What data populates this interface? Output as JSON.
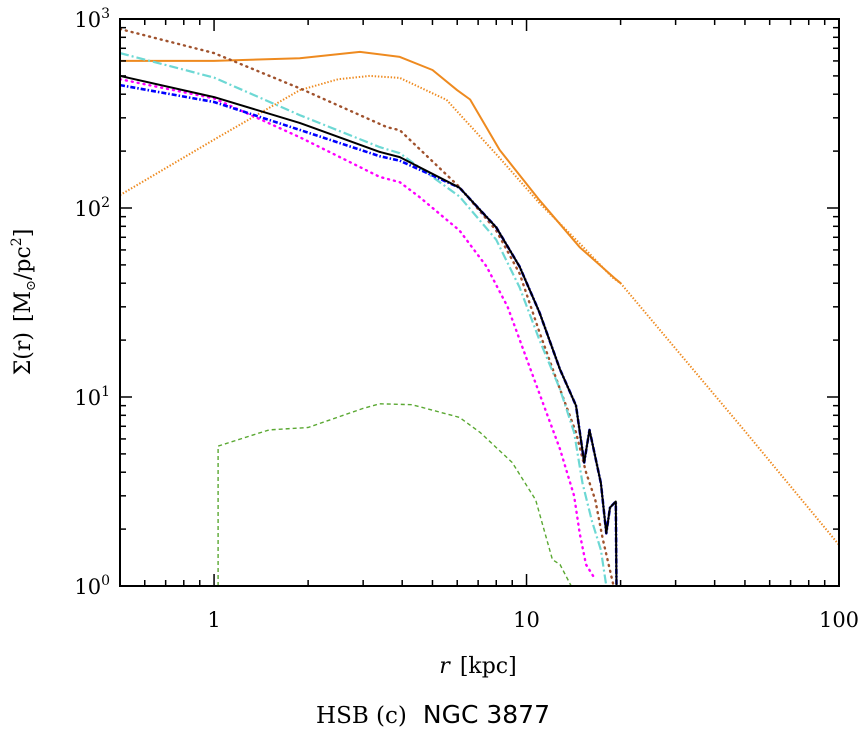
{
  "chart_data": {
    "type": "line",
    "title": "",
    "caption": {
      "prefix": "HSB (c)",
      "name": "NGC 3877"
    },
    "xlabel": {
      "var": "r",
      "unit": "[kpc]"
    },
    "ylabel": {
      "text": "Σ(r)",
      "unit_open": "[M",
      "unit_sub": "⊙",
      "unit_rest": "/pc",
      "unit_sup": "2",
      "unit_close": "]"
    },
    "xscale": "log",
    "yscale": "log",
    "xlim": [
      0.5,
      100
    ],
    "ylim": [
      1,
      1000
    ],
    "grid": false,
    "legend": "none",
    "x_ticks": [
      {
        "value": 1,
        "label": "1"
      },
      {
        "value": 10,
        "label": "10"
      },
      {
        "value": 100,
        "label": "100"
      }
    ],
    "y_ticks": [
      {
        "value": 1,
        "base": "10",
        "exp": "0"
      },
      {
        "value": 10,
        "base": "10",
        "exp": "1"
      },
      {
        "value": 100,
        "base": "10",
        "exp": "2"
      },
      {
        "value": 1000,
        "base": "10",
        "exp": "3"
      }
    ],
    "series": [
      {
        "color": "#ee8a1f",
        "style": "dotted-fine",
        "x": [
          0.5,
          1,
          1.88,
          2.5,
          3.15,
          3.93,
          5.55,
          8.2,
          11,
          14.8,
          18.8,
          20,
          50,
          100
        ],
        "y": [
          117,
          230,
          420,
          480,
          500,
          488,
          373,
          184,
          106,
          65,
          43,
          40,
          6.6,
          1.65
        ]
      },
      {
        "color": "#ee8a1f",
        "style": "solid",
        "x": [
          0.5,
          1,
          1.88,
          2.93,
          3.93,
          5,
          6,
          6.6,
          8.2,
          11,
          14.8,
          19.3,
          20
        ],
        "y": [
          600,
          600,
          620,
          670,
          630,
          537,
          420,
          375,
          203,
          110,
          62,
          42,
          40
        ]
      },
      {
        "color": "#a0522d",
        "style": "dotted",
        "x": [
          0.5,
          1,
          1.88,
          3.57,
          3.93,
          6.1,
          8,
          9.5,
          11,
          12.8,
          14.4,
          15.5,
          16.6,
          17.5,
          19
        ],
        "y": [
          885,
          660,
          430,
          268,
          258,
          129,
          76,
          45,
          22,
          11,
          6.5,
          4,
          2.85,
          1.8,
          1
        ]
      },
      {
        "color": "#6dd8d4",
        "style": "dashdot",
        "x": [
          0.5,
          1,
          1.88,
          3.39,
          3.93,
          6.1,
          8,
          9.5,
          11,
          12.8,
          14.2,
          15.1,
          16.2,
          17.3,
          18
        ],
        "y": [
          660,
          490,
          310,
          210,
          195,
          115,
          68,
          38,
          20,
          11,
          6.5,
          3.5,
          2.2,
          1.55,
          1
        ]
      },
      {
        "color": "#ff00ff",
        "style": "dotted",
        "x": [
          0.5,
          1,
          1.88,
          3.39,
          3.93,
          4.55,
          6.1,
          7.45,
          8.7,
          10,
          11.6,
          12.8,
          14.2,
          14.8,
          15.5,
          16.5
        ],
        "y": [
          480,
          380,
          237,
          146,
          137,
          114,
          76,
          49,
          30,
          16,
          8.2,
          5.3,
          3,
          1.9,
          1.3,
          1.1
        ]
      },
      {
        "color": "#0000ff",
        "style": "dashdot-dense",
        "x": [
          0.5,
          1,
          1.88,
          3.39,
          3.93,
          6.1,
          8,
          9.5,
          11,
          12.8,
          14.4,
          15.3,
          15.9,
          17.3,
          18,
          18.5,
          19.3,
          19.4
        ],
        "y": [
          447,
          364,
          259,
          188,
          178,
          128,
          79,
          49,
          28,
          14,
          9,
          4.5,
          6.7,
          3.5,
          1.9,
          2.6,
          2.8,
          1
        ]
      },
      {
        "color": "#000000",
        "style": "solid",
        "x": [
          0.5,
          1,
          1.88,
          3.39,
          3.93,
          6.1,
          8,
          9.5,
          11,
          12.8,
          14.4,
          15.3,
          15.9,
          17.3,
          18,
          18.5,
          19.3,
          19.4
        ],
        "y": [
          500,
          386,
          282,
          198,
          186,
          128,
          79,
          49,
          28,
          14,
          9,
          4.5,
          6.7,
          3.5,
          1.9,
          2.6,
          2.8,
          1
        ]
      },
      {
        "color": "#5aa832",
        "style": "dashed",
        "x": [
          1.03,
          1.03,
          1.5,
          2,
          3,
          3.39,
          4.3,
          6.1,
          7.1,
          9,
          10.7,
          12.1,
          12.8,
          13.9
        ],
        "y": [
          1,
          5.5,
          6.7,
          6.9,
          8.7,
          9.2,
          9.1,
          7.8,
          6.5,
          4.5,
          2.85,
          1.38,
          1.3,
          1.0
        ]
      }
    ]
  }
}
